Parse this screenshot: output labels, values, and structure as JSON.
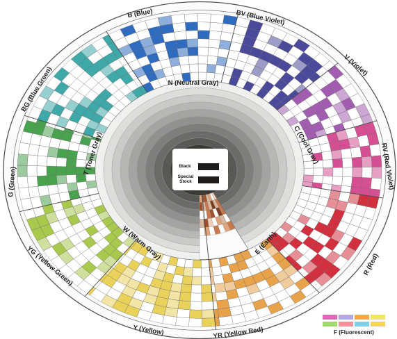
{
  "wheel": {
    "center": {
      "black_label": "Black",
      "special_stock_label": "Special\nStock"
    },
    "families": {
      "n": "N (Neutral Gray)",
      "b": "B (Blue)",
      "bv": "BV (Blue Violet)",
      "v": "V (Violet)",
      "c": "C (Cool Gray)",
      "rv": "RV (Red Violet)",
      "r": "R (Red)",
      "e": "E (Earth)",
      "yr": "YR (Yellow Red)",
      "y": "Y (Yellow)",
      "yg": "YG (Yellow Green)",
      "w": "W (Warm Gray)",
      "g": "G (Green)",
      "t": "T (Toner Gray)",
      "bg": "BG (Blue Green)"
    },
    "fluorescent_label": "F (Fluorescent)"
  },
  "palette": {
    "blue": "#2f6cc0",
    "blue_violet": "#4b4a9a",
    "violet": "#a35db0",
    "red_violet": "#d64f93",
    "red": "#d3303f",
    "earth": "#b0663a",
    "yellow_red": "#e7a24a",
    "yellow": "#ead25a",
    "yellow_green": "#a9c94d",
    "green": "#49a24e",
    "blue_green": "#3ea9a8",
    "fluorescent": [
      "#d86cb5",
      "#b3a7e6",
      "#f2a84e",
      "#f0e664",
      "#9fd96e",
      "#f58f9a",
      "#7fd0e6",
      "#f7d35f"
    ]
  }
}
